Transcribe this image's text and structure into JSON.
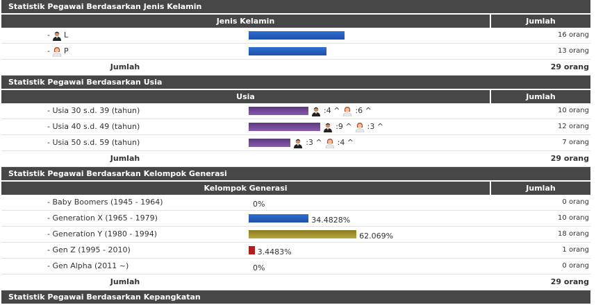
{
  "sections": {
    "gender": {
      "title": "Statistik Pegawai Berdasarkan Jenis Kelamin",
      "col1": "Jenis Kelamin",
      "col2": "Jumlah",
      "rows": [
        {
          "label": "L",
          "icon": "male-icon",
          "value": 16,
          "count": "16 orang"
        },
        {
          "label": "P",
          "icon": "female-icon",
          "value": 13,
          "count": "13 orang"
        }
      ],
      "total_label": "Jumlah",
      "total": "29 orang"
    },
    "age": {
      "title": "Statistik Pegawai Berdasarkan Usia",
      "col1": "Usia",
      "col2": "Jumlah",
      "rows": [
        {
          "label": "- Usia 30 s.d. 39 (tahun)",
          "value": 10,
          "male": ":4 ^",
          "female": ":6 ^",
          "count": "10 orang"
        },
        {
          "label": "- Usia 40 s.d. 49 (tahun)",
          "value": 12,
          "male": ":9 ^",
          "female": ":3 ^",
          "count": "12 orang"
        },
        {
          "label": "- Usia 50 s.d. 59 (tahun)",
          "value": 7,
          "male": ":3 ^",
          "female": ":4 ^",
          "count": "7 orang"
        }
      ],
      "total_label": "Jumlah",
      "total": "29 orang"
    },
    "generation": {
      "title": "Statistik Pegawai Berdasarkan Kelompok Generasi",
      "col1": "Kelompok Generasi",
      "col2": "Jumlah",
      "rows": [
        {
          "label": "- Baby Boomers (1945 - 1964)",
          "percent": 0,
          "pct": "0%",
          "count": "0 orang",
          "color": "blue"
        },
        {
          "label": "- Generation X (1965 - 1979)",
          "percent": 34.4828,
          "pct": "34.4828%",
          "count": "10 orang",
          "color": "blue"
        },
        {
          "label": "- Generation Y (1980 - 1994)",
          "percent": 62.069,
          "pct": "62.069%",
          "count": "18 orang",
          "color": "olive"
        },
        {
          "label": "- Gen Z (1995 - 2010)",
          "percent": 3.4483,
          "pct": "3.4483%",
          "count": "1 orang",
          "color": "red"
        },
        {
          "label": "- Gen Alpha (2011 ~)",
          "percent": 0,
          "pct": "0%",
          "count": "0 orang",
          "color": "blue"
        }
      ],
      "total_label": "Jumlah",
      "total": "29 orang"
    },
    "rank": {
      "title": "Statistik Pegawai Berdasarkan Kepangkatan"
    }
  },
  "colors": {
    "header": "#474747",
    "blue": "#2a62c4",
    "purple": "#6e4898",
    "olive": "#a8982e",
    "red": "#b01e1e"
  }
}
